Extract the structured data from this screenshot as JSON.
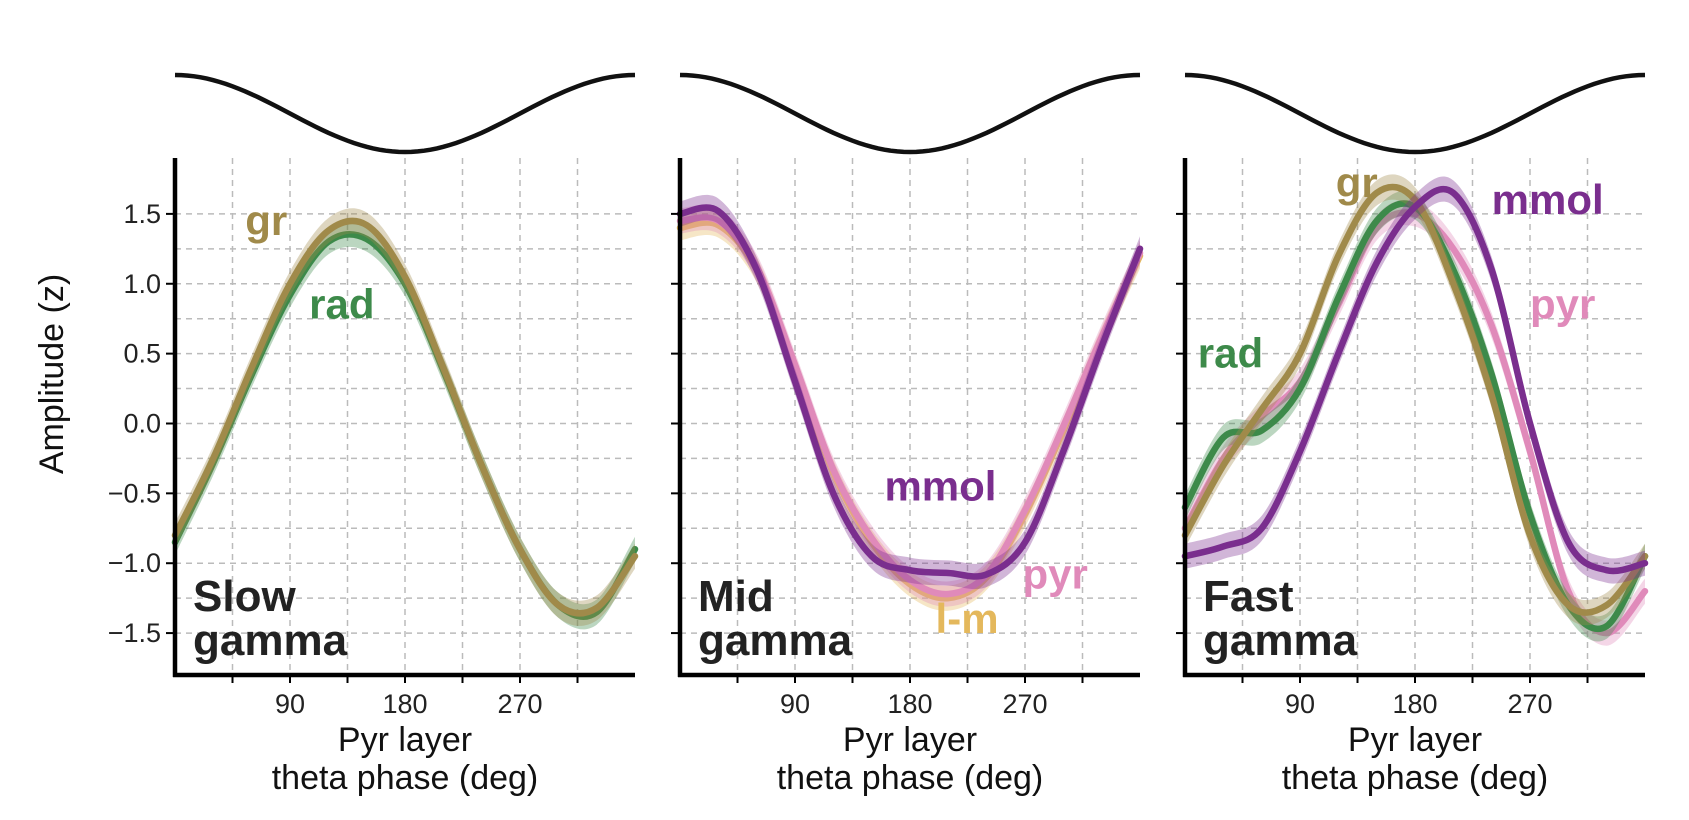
{
  "figure": {
    "ylabel": "Amplitude (z)",
    "xlabel_line1": "Pyr layer",
    "xlabel_line2": "theta phase (deg)",
    "y_ticks": [
      -1.5,
      -1.0,
      -0.5,
      0.0,
      0.5,
      1.0,
      1.5
    ],
    "y_tick_labels": [
      "−1.5",
      "−1.0",
      "−0.5",
      "0.0",
      "0.5",
      "1.0",
      "1.5"
    ],
    "x_ticks": [
      90,
      180,
      270
    ],
    "x_tick_labels": [
      "90",
      "180",
      "270"
    ],
    "ylim": [
      -1.8,
      1.9
    ],
    "xlim": [
      0,
      360
    ],
    "grid": true
  },
  "colors": {
    "gr": "#a08a4a",
    "rad": "#3d8a4a",
    "mmol": "#7a2e8e",
    "pyr": "#e08aba",
    "l-m": "#e4b85c"
  },
  "chart_data": [
    {
      "type": "line",
      "title_line1": "Slow",
      "title_line2": "gamma",
      "x": [
        0,
        30,
        60,
        90,
        120,
        150,
        180,
        210,
        240,
        270,
        300,
        330,
        360
      ],
      "series": [
        {
          "name": "rad",
          "key": "rad",
          "values": [
            -0.85,
            -0.28,
            0.35,
            0.92,
            1.3,
            1.32,
            1.0,
            0.38,
            -0.3,
            -0.9,
            -1.3,
            -1.35,
            -0.9
          ]
        },
        {
          "name": "gr",
          "key": "gr",
          "values": [
            -0.8,
            -0.25,
            0.4,
            1.0,
            1.38,
            1.42,
            1.05,
            0.4,
            -0.3,
            -0.9,
            -1.3,
            -1.32,
            -0.95
          ]
        }
      ],
      "labels": [
        {
          "text": "gr",
          "key": "gr",
          "x": 55,
          "y": 1.35
        },
        {
          "text": "rad",
          "key": "rad",
          "x": 105,
          "y": 0.75
        }
      ]
    },
    {
      "type": "line",
      "title_line1": "Mid",
      "title_line2": "gamma",
      "x": [
        0,
        30,
        60,
        90,
        120,
        150,
        180,
        210,
        240,
        270,
        300,
        330,
        360
      ],
      "series": [
        {
          "name": "l-m",
          "key": "l-m",
          "values": [
            1.4,
            1.42,
            1.1,
            0.4,
            -0.35,
            -0.85,
            -1.15,
            -1.25,
            -1.1,
            -0.65,
            -0.05,
            0.6,
            1.2
          ]
        },
        {
          "name": "pyr",
          "key": "pyr",
          "values": [
            1.45,
            1.45,
            1.12,
            0.42,
            -0.33,
            -0.82,
            -1.12,
            -1.22,
            -1.08,
            -0.62,
            -0.02,
            0.62,
            1.22
          ]
        },
        {
          "name": "mmol",
          "key": "mmol",
          "values": [
            1.5,
            1.52,
            1.1,
            0.3,
            -0.5,
            -0.95,
            -1.05,
            -1.07,
            -1.08,
            -0.85,
            -0.2,
            0.55,
            1.25
          ]
        }
      ],
      "labels": [
        {
          "text": "mmol",
          "key": "mmol",
          "x": 160,
          "y": -0.55
        },
        {
          "text": "pyr",
          "key": "pyr",
          "x": 268,
          "y": -1.18
        },
        {
          "text": "l-m",
          "key": "l-m",
          "x": 200,
          "y": -1.5
        }
      ]
    },
    {
      "type": "line",
      "title_line1": "Fast",
      "title_line2": "gamma",
      "x": [
        0,
        30,
        60,
        90,
        120,
        150,
        180,
        210,
        240,
        270,
        300,
        330,
        360
      ],
      "series": [
        {
          "name": "pyr",
          "key": "pyr",
          "values": [
            -0.75,
            -0.25,
            0.05,
            0.3,
            0.85,
            1.4,
            1.5,
            1.25,
            0.7,
            -0.2,
            -1.2,
            -1.5,
            -1.2
          ]
        },
        {
          "name": "rad",
          "key": "rad",
          "values": [
            -0.6,
            -0.1,
            -0.05,
            0.25,
            0.9,
            1.45,
            1.55,
            1.1,
            0.35,
            -0.65,
            -1.3,
            -1.45,
            -0.95
          ]
        },
        {
          "name": "gr",
          "key": "gr",
          "values": [
            -0.8,
            -0.3,
            0.1,
            0.5,
            1.2,
            1.65,
            1.6,
            1.0,
            0.2,
            -0.8,
            -1.3,
            -1.3,
            -0.95
          ]
        },
        {
          "name": "mmol",
          "key": "mmol",
          "values": [
            -0.95,
            -0.88,
            -0.75,
            -0.2,
            0.5,
            1.15,
            1.55,
            1.65,
            1.1,
            0.0,
            -0.85,
            -1.05,
            -1.0
          ]
        }
      ],
      "labels": [
        {
          "text": "gr",
          "key": "gr",
          "x": 118,
          "y": 1.62
        },
        {
          "text": "mmol",
          "key": "mmol",
          "x": 240,
          "y": 1.5
        },
        {
          "text": "pyr",
          "key": "pyr",
          "x": 270,
          "y": 0.75
        },
        {
          "text": "rad",
          "key": "rad",
          "x": 10,
          "y": 0.4
        }
      ]
    }
  ]
}
